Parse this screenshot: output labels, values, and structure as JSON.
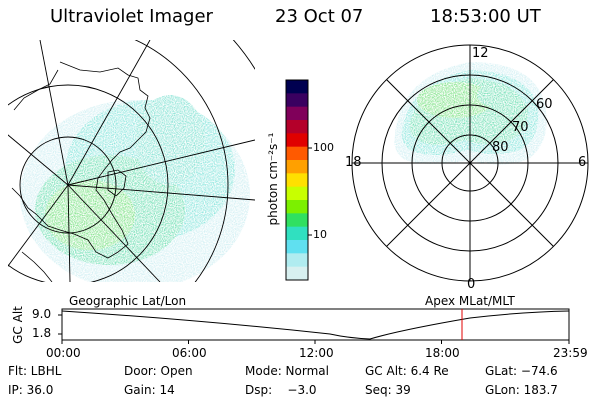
{
  "header": {
    "instrument": "Ultraviolet Imager",
    "date": "23 Oct 07",
    "time": "18:53:00 UT"
  },
  "colorbar": {
    "label": "photon cm⁻²s⁻¹",
    "ticks": [
      "100",
      "10"
    ],
    "colors": [
      "#000050",
      "#3a0060",
      "#80005a",
      "#b4002a",
      "#e00000",
      "#ff5a00",
      "#ffa000",
      "#ffe000",
      "#c8ff00",
      "#7cf000",
      "#30e060",
      "#30e0c0",
      "#60e0f0",
      "#b0ecf0",
      "#d8f0f0"
    ]
  },
  "left_map": {
    "caption": "Geographic Lat/Lon"
  },
  "right_map": {
    "caption": "Apex MLat/MLT",
    "mlt_labels": {
      "top": "12",
      "left": "18",
      "right": "6",
      "bottom": "0"
    },
    "mlat_labels": [
      "60",
      "70",
      "80"
    ]
  },
  "altitude_plot": {
    "ylabel": "GC Alt",
    "yticks": [
      "9.0",
      "1.8"
    ],
    "xticks": [
      "00:00",
      "06:00",
      "12:00",
      "18:00",
      "23:59"
    ]
  },
  "info": {
    "filter": "Flt: LBHL",
    "door": "Door: Open",
    "mode": "Mode: Normal",
    "gc_alt": "GC Alt: 6.4 Re",
    "glat": "GLat: −74.6",
    "ip": "IP: 36.0",
    "gain": "Gain: 14",
    "dsp": "Dsp:    −3.0",
    "seq": "Seq: 39",
    "glon": "GLon: 183.7"
  }
}
